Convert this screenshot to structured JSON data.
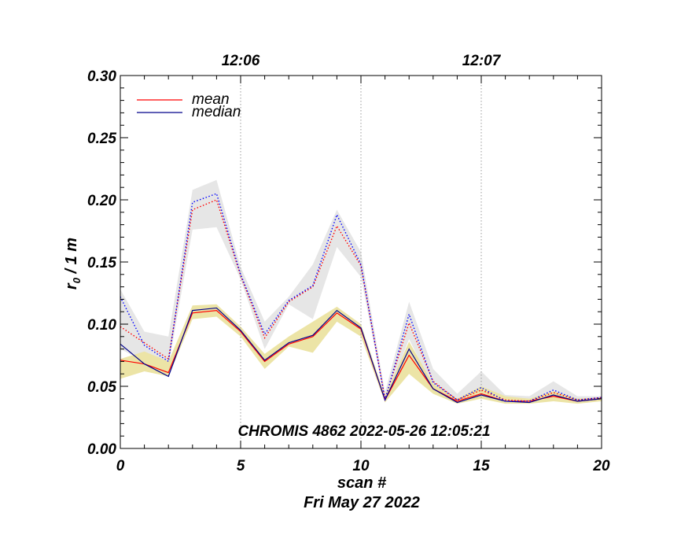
{
  "chart_data": {
    "type": "line",
    "xlabel": "scan #",
    "xlabel2": "Fri May 27 2022",
    "ylabel_main": "r",
    "ylabel_sub": "0",
    "ylabel_rest": " / 1 m",
    "annotation": "CHROMIS 4862 2022-05-26 12:05:21",
    "xlim": [
      0,
      20
    ],
    "ylim": [
      0,
      0.3
    ],
    "x_ticks": [
      0,
      5,
      10,
      15,
      20
    ],
    "y_ticks": [
      0.0,
      0.05,
      0.1,
      0.15,
      0.2,
      0.25,
      0.3
    ],
    "y_tick_labels": [
      "0.00",
      "0.05",
      "0.10",
      "0.15",
      "0.20",
      "0.25",
      "0.30"
    ],
    "top_axis": [
      {
        "label": "12:06",
        "x": 5
      },
      {
        "label": "12:07",
        "x": 15
      }
    ],
    "vlines": [
      5,
      10,
      15
    ],
    "x": [
      0,
      1,
      2,
      3,
      4,
      5,
      6,
      7,
      8,
      9,
      10,
      11,
      12,
      13,
      14,
      15,
      16,
      17,
      18,
      19,
      20
    ],
    "legend": [
      {
        "label": "mean",
        "color": "#ff0000"
      },
      {
        "label": "median",
        "color": "#00008b"
      }
    ],
    "series": [
      {
        "name": "mean",
        "color": "#ff0000",
        "style": "solid",
        "values": [
          0.071,
          0.068,
          0.061,
          0.109,
          0.111,
          0.094,
          0.07,
          0.084,
          0.09,
          0.109,
          0.096,
          0.039,
          0.075,
          0.048,
          0.038,
          0.044,
          0.038,
          0.038,
          0.042,
          0.038,
          0.04
        ]
      },
      {
        "name": "median",
        "color": "#00008b",
        "style": "solid",
        "values": [
          0.084,
          0.068,
          0.058,
          0.111,
          0.113,
          0.095,
          0.071,
          0.085,
          0.091,
          0.111,
          0.097,
          0.039,
          0.08,
          0.048,
          0.037,
          0.043,
          0.038,
          0.037,
          0.043,
          0.038,
          0.04
        ]
      },
      {
        "name": "mean",
        "color": "#ff0000",
        "style": "dotted",
        "values": [
          0.098,
          0.085,
          0.072,
          0.192,
          0.2,
          0.139,
          0.089,
          0.118,
          0.13,
          0.179,
          0.147,
          0.04,
          0.101,
          0.054,
          0.039,
          0.047,
          0.039,
          0.038,
          0.045,
          0.039,
          0.041
        ]
      },
      {
        "name": "median",
        "color": "#0000ff",
        "style": "dotted",
        "values": [
          0.122,
          0.083,
          0.07,
          0.198,
          0.205,
          0.14,
          0.092,
          0.119,
          0.131,
          0.188,
          0.148,
          0.039,
          0.108,
          0.053,
          0.039,
          0.049,
          0.038,
          0.038,
          0.047,
          0.039,
          0.041
        ]
      }
    ],
    "bands": [
      {
        "color": "#e6e6e6",
        "upper": [
          0.128,
          0.094,
          0.09,
          0.208,
          0.216,
          0.146,
          0.102,
          0.122,
          0.148,
          0.192,
          0.158,
          0.045,
          0.118,
          0.064,
          0.044,
          0.062,
          0.043,
          0.042,
          0.054,
          0.042,
          0.042
        ],
        "lower": [
          0.08,
          0.07,
          0.066,
          0.176,
          0.178,
          0.136,
          0.08,
          0.116,
          0.104,
          0.162,
          0.138,
          0.038,
          0.088,
          0.049,
          0.038,
          0.042,
          0.037,
          0.037,
          0.04,
          0.037,
          0.039
        ]
      },
      {
        "color": "#ece4a6",
        "upper": [
          0.072,
          0.078,
          0.07,
          0.115,
          0.116,
          0.098,
          0.076,
          0.09,
          0.102,
          0.114,
          0.1,
          0.042,
          0.086,
          0.052,
          0.04,
          0.05,
          0.042,
          0.04,
          0.046,
          0.04,
          0.041
        ],
        "lower": [
          0.056,
          0.062,
          0.058,
          0.104,
          0.106,
          0.09,
          0.064,
          0.082,
          0.077,
          0.102,
          0.09,
          0.037,
          0.06,
          0.044,
          0.036,
          0.04,
          0.036,
          0.036,
          0.038,
          0.036,
          0.038
        ]
      }
    ]
  }
}
